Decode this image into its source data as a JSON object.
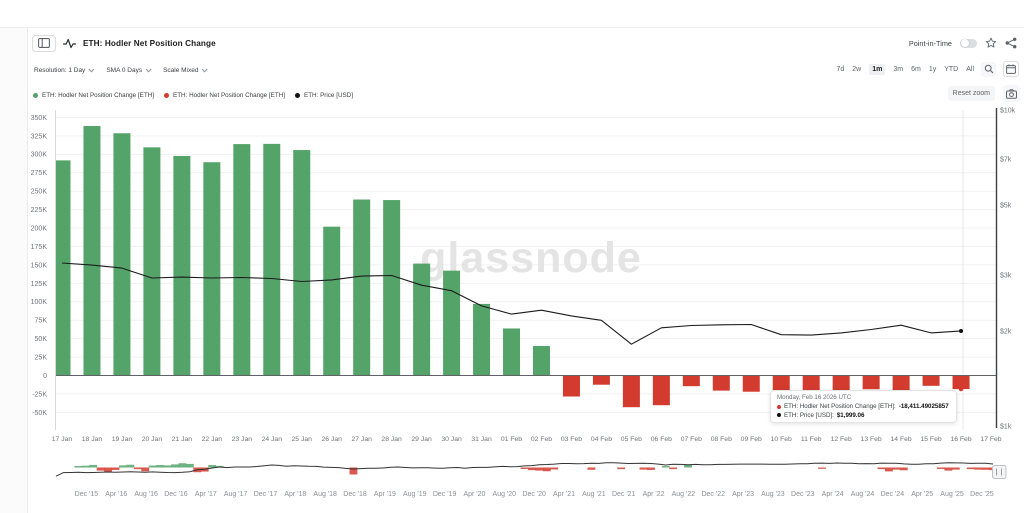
{
  "header": {
    "title": "ETH: Hodler Net Position Change",
    "point_in_time_label": "Point-in-Time",
    "point_in_time_on": false
  },
  "controls": {
    "resolution": "Resolution: 1 Day",
    "sma": "SMA 0 Days",
    "scale": "Scale Mixed",
    "ranges": [
      "7d",
      "2w",
      "1m",
      "3m",
      "6m",
      "1y",
      "YTD",
      "All"
    ],
    "selected_range": "1m",
    "reset_zoom_label": "Reset zoom"
  },
  "legend": [
    {
      "label": "ETH: Hodler Net Position Change [ETH]",
      "color": "#54a46a"
    },
    {
      "label": "ETH: Hodler Net Position Change [ETH]",
      "color": "#d43b2f"
    },
    {
      "label": "ETH: Price [USD]",
      "color": "#111111"
    }
  ],
  "tooltip": {
    "date": "Monday, Feb 16 2026 UTC",
    "rows": [
      {
        "color": "#d43b2f",
        "label": "ETH: Hodler Net Position Change [ETH]:",
        "value": "-18,411.49025857"
      },
      {
        "color": "#111111",
        "label": "ETH: Price [USD]:",
        "value": "$1,999.06"
      }
    ]
  },
  "chart_data": {
    "type": "bar+line",
    "title": "ETH: Hodler Net Position Change",
    "watermark": "glassnode",
    "categories": [
      "17 Jan",
      "18 Jan",
      "19 Jan",
      "20 Jan",
      "21 Jan",
      "22 Jan",
      "23 Jan",
      "24 Jan",
      "25 Jan",
      "26 Jan",
      "27 Jan",
      "28 Jan",
      "29 Jan",
      "30 Jan",
      "31 Jan",
      "01 Feb",
      "02 Feb",
      "03 Feb",
      "04 Feb",
      "05 Feb",
      "06 Feb",
      "07 Feb",
      "08 Feb",
      "09 Feb",
      "10 Feb",
      "11 Feb",
      "12 Feb",
      "13 Feb",
      "14 Feb",
      "15 Feb",
      "16 Feb"
    ],
    "x_axis_labels": [
      "17 Jan",
      "18 Jan",
      "19 Jan",
      "20 Jan",
      "21 Jan",
      "22 Jan",
      "23 Jan",
      "24 Jan",
      "25 Jan",
      "26 Jan",
      "27 Jan",
      "28 Jan",
      "29 Jan",
      "30 Jan",
      "31 Jan",
      "01 Feb",
      "02 Feb",
      "03 Feb",
      "04 Feb",
      "05 Feb",
      "06 Feb",
      "07 Feb",
      "08 Feb",
      "09 Feb",
      "10 Feb",
      "11 Feb",
      "12 Feb",
      "13 Feb",
      "14 Feb",
      "15 Feb",
      "16 Feb",
      "17 Feb"
    ],
    "series": [
      {
        "name": "ETH: Hodler Net Position Change [ETH]",
        "type": "column",
        "axis": "left",
        "positive_color": "#54a46a",
        "negative_color": "#d43b2f",
        "values": [
          291800,
          338400,
          328600,
          309500,
          297800,
          289300,
          313900,
          314200,
          305800,
          201900,
          238700,
          238000,
          151800,
          142200,
          97100,
          63800,
          40000,
          -28500,
          -12500,
          -43000,
          -40300,
          -14500,
          -20500,
          -22000,
          -21000,
          -20500,
          -21000,
          -18600,
          -19800,
          -14000,
          -18411.49025857
        ]
      },
      {
        "name": "ETH: Price [USD]",
        "type": "line",
        "axis": "right",
        "color": "#1b1b1b",
        "values": [
          3280,
          3230,
          3160,
          2940,
          2960,
          2940,
          2950,
          2930,
          2865,
          2900,
          2980,
          2995,
          2790,
          2680,
          2400,
          2260,
          2325,
          2230,
          2160,
          1815,
          2045,
          2080,
          2090,
          2095,
          1945,
          1940,
          1970,
          2020,
          2085,
          1970,
          1999.06
        ]
      }
    ],
    "left_axis": {
      "ticks": [
        {
          "label": "350K",
          "value": 350000
        },
        {
          "label": "325K",
          "value": 325000
        },
        {
          "label": "300K",
          "value": 300000
        },
        {
          "label": "275K",
          "value": 275000
        },
        {
          "label": "250K",
          "value": 250000
        },
        {
          "label": "225K",
          "value": 225000
        },
        {
          "label": "200K",
          "value": 200000
        },
        {
          "label": "175K",
          "value": 175000
        },
        {
          "label": "150K",
          "value": 150000
        },
        {
          "label": "125K",
          "value": 125000
        },
        {
          "label": "100K",
          "value": 100000
        },
        {
          "label": "75K",
          "value": 75000
        },
        {
          "label": "50K",
          "value": 50000
        },
        {
          "label": "25K",
          "value": 25000
        },
        {
          "label": "0",
          "value": 0
        },
        {
          "label": "-25K",
          "value": -25000
        },
        {
          "label": "-50K",
          "value": -50000
        }
      ]
    },
    "right_axis": {
      "type": "log",
      "ticks": [
        {
          "label": "$10k",
          "value": 10000
        },
        {
          "label": "$7k",
          "value": 7000
        },
        {
          "label": "$5k",
          "value": 5000
        },
        {
          "label": "$3k",
          "value": 3000
        },
        {
          "label": "$2k",
          "value": 2000
        },
        {
          "label": "$1k",
          "value": 1000
        }
      ]
    },
    "hover_index": 30,
    "grid_color": "#f1f1f1",
    "zero_line_color": "#5f6368",
    "crosshair_color": "#e6e6e6",
    "axis_label_color": "#6f7377",
    "watermark_color": "#e4e4e4"
  },
  "navigator": {
    "labels": [
      "Dec '15",
      "Apr '16",
      "Aug '16",
      "Dec '16",
      "Apr '17",
      "Aug '17",
      "Dec '17",
      "Apr '18",
      "Aug '18",
      "Dec '18",
      "Apr '19",
      "Aug '19",
      "Dec '19",
      "Apr '20",
      "Aug '20",
      "Dec '20",
      "Apr '21",
      "Aug '21",
      "Dec '21",
      "Apr '22",
      "Aug '22",
      "Dec '22",
      "Apr '23",
      "Aug '23",
      "Dec '23",
      "Apr '24",
      "Aug '24",
      "Dec '24",
      "Apr '25",
      "Aug '25",
      "Dec '25"
    ],
    "line_color": "#333333",
    "price_monthly": [
      0.8,
      8,
      9,
      10,
      8,
      9,
      10,
      12,
      10,
      12,
      14,
      12,
      11,
      13,
      11,
      9,
      8,
      10,
      15,
      50,
      70,
      160,
      300,
      200,
      300,
      290,
      300,
      400,
      700,
      1100,
      850,
      500,
      650,
      580,
      450,
      430,
      280,
      230,
      200,
      120,
      85,
      105,
      135,
      140,
      160,
      250,
      300,
      220,
      170,
      180,
      180,
      150,
      130,
      180,
      220,
      135,
      210,
      230,
      230,
      320,
      430,
      360,
      390,
      600,
      740,
      1300,
      1450,
      1900,
      2800,
      2700,
      2250,
      2550,
      3400,
      3000,
      4300,
      4600,
      3700,
      2700,
      2900,
      3300,
      2800,
      1900,
      1050,
      1700,
      1550,
      1330,
      1570,
      1280,
      1200,
      1580,
      1600,
      1820,
      1870,
      1870,
      1930,
      1860,
      1650,
      1670,
      1800,
      2050,
      2280,
      2280,
      3380,
      3650,
      3000,
      3760,
      3440,
      3230,
      2500,
      2600,
      2500,
      3700,
      3330,
      3300,
      2200,
      1800,
      1800,
      2500,
      2500,
      3700,
      4400,
      4150,
      3800,
      3000,
      3400,
      3280,
      2000
    ],
    "flow_monthly": [
      0,
      0,
      60000,
      90000,
      110000,
      160000,
      -190000,
      -270000,
      -150000,
      130000,
      170000,
      -100000,
      -230000,
      120000,
      150000,
      130000,
      190000,
      260000,
      220000,
      -290000,
      -250000,
      150000,
      100000,
      70000,
      60000,
      50000,
      40000,
      40000,
      -60000,
      50000,
      40000,
      40000,
      40000,
      40000,
      40000,
      40000,
      40000,
      40000,
      40000,
      40000,
      -430000,
      40000,
      40000,
      40000,
      40000,
      -50000,
      40000,
      40000,
      40000,
      40000,
      40000,
      40000,
      40000,
      40000,
      40000,
      50000,
      40000,
      40000,
      40000,
      40000,
      -50000,
      40000,
      40000,
      -90000,
      -160000,
      -190000,
      -230000,
      -120000,
      40000,
      40000,
      40000,
      40000,
      -140000,
      40000,
      -40000,
      -40000,
      -100000,
      40000,
      40000,
      -130000,
      -150000,
      60000,
      90000,
      -100000,
      -40000,
      170000,
      40000,
      40000,
      -40000,
      40000,
      40000,
      40000,
      40000,
      40000,
      40000,
      40000,
      40000,
      40000,
      40000,
      40000,
      40000,
      50000,
      -40000,
      -80000,
      40000,
      -40000,
      40000,
      40000,
      40000,
      40000,
      40000,
      -100000,
      -240000,
      -130000,
      -170000,
      40000,
      40000,
      40000,
      40000,
      -90000,
      -190000,
      -130000,
      40000,
      -100000,
      -130000,
      -140000,
      -160000
    ]
  }
}
